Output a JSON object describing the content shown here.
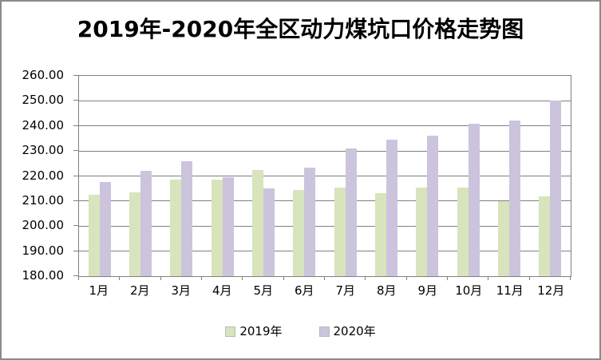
{
  "title": "2019年-2020年全区动力煤坑口价格走势图",
  "colors": {
    "series_2019": "#D7E4BC",
    "series_2020": "#CCC4DD",
    "gridline": "#808080",
    "frame_border": "#8a8a8a"
  },
  "chart_data": {
    "type": "bar",
    "title": "2019年-2020年全区动力煤坑口价格走势图",
    "categories": [
      "1月",
      "2月",
      "3月",
      "4月",
      "5月",
      "6月",
      "7月",
      "8月",
      "9月",
      "10月",
      "11月",
      "12月"
    ],
    "series": [
      {
        "name": "2019年",
        "color": "#D7E4BC",
        "values": [
          212.5,
          213.5,
          218.5,
          218.5,
          222.5,
          214.5,
          215.5,
          213.0,
          215.5,
          215.5,
          210.0,
          212.0
        ]
      },
      {
        "name": "2020年",
        "color": "#CCC4DD",
        "values": [
          217.5,
          222.0,
          226.0,
          219.5,
          215.0,
          223.5,
          231.0,
          234.5,
          236.0,
          241.0,
          242.0,
          250.0
        ]
      }
    ],
    "xlabel": "",
    "ylabel": "",
    "ylim": [
      180,
      260
    ],
    "ytick_step": 10,
    "ytick_labels": [
      "260.00",
      "250.00",
      "240.00",
      "230.00",
      "220.00",
      "210.00",
      "200.00",
      "190.00",
      "180.00"
    ],
    "grid": true,
    "legend_position": "bottom"
  }
}
